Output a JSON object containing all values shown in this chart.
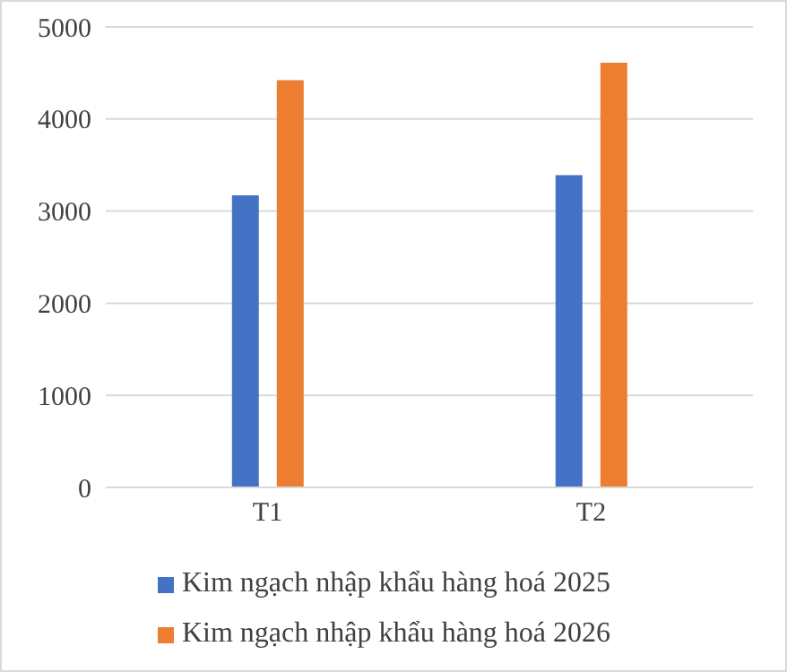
{
  "chart_data": {
    "type": "bar",
    "categories": [
      "T1",
      "T2"
    ],
    "series": [
      {
        "name": "Kim ngạch nhập khẩu hàng hoá 2025",
        "color": "#4472c4",
        "values": [
          3170,
          3390
        ]
      },
      {
        "name": "Kim ngạch nhập khẩu hàng hoá 2026",
        "color": "#ed7d31",
        "values": [
          4420,
          4610
        ]
      }
    ],
    "ylim": [
      0,
      5000
    ],
    "yticks": [
      0,
      1000,
      2000,
      3000,
      4000,
      5000
    ],
    "grid": "y",
    "legend": "bottom"
  }
}
